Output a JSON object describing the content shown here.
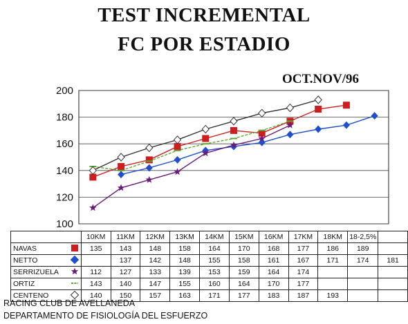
{
  "header": {
    "title_line1": "TEST INCREMENTAL",
    "title_line2": "FC POR ESTADIO",
    "date": "OCT.NOV/96"
  },
  "footer": {
    "line1": "RACING CLUB DE AVELLANEDA",
    "line2": "DEPARTAMENTO DE FISIOLOGÍA DEL ESFUERZO"
  },
  "chart_data": {
    "type": "line",
    "title": "TEST INCREMENTAL FC POR ESTADIO",
    "subtitle": "OCT.NOV/96",
    "categories": [
      "10KM",
      "11KM",
      "12KM",
      "13KM",
      "14KM",
      "15KM",
      "16KM",
      "17KM",
      "18KM",
      "18-2,5%",
      ""
    ],
    "ylim": [
      100,
      200
    ],
    "yticks": [
      100,
      120,
      140,
      160,
      180,
      200
    ],
    "grid": true,
    "legend": "table-below",
    "series": [
      {
        "name": "NAVAS",
        "color": "#cc1f1f",
        "marker": "square",
        "values": [
          135,
          143,
          148,
          158,
          164,
          170,
          168,
          177,
          186,
          189,
          null
        ]
      },
      {
        "name": "NETTO",
        "color": "#1f4fcc",
        "marker": "diamond",
        "values": [
          null,
          137,
          142,
          148,
          155,
          158,
          161,
          167,
          171,
          174,
          181
        ]
      },
      {
        "name": "SERRIZUELA",
        "color": "#6a1a7a",
        "marker": "star",
        "values": [
          112,
          127,
          133,
          139,
          153,
          159,
          164,
          174,
          null,
          null,
          null
        ]
      },
      {
        "name": "ORTIZ",
        "color": "#5aa832",
        "marker": "dash",
        "values": [
          143,
          140,
          147,
          155,
          160,
          164,
          170,
          177,
          null,
          null,
          null
        ]
      },
      {
        "name": "CENTENO",
        "color": "#333333",
        "marker": "open-diamond",
        "values": [
          140,
          150,
          157,
          163,
          171,
          177,
          183,
          187,
          193,
          null,
          null
        ]
      }
    ]
  }
}
